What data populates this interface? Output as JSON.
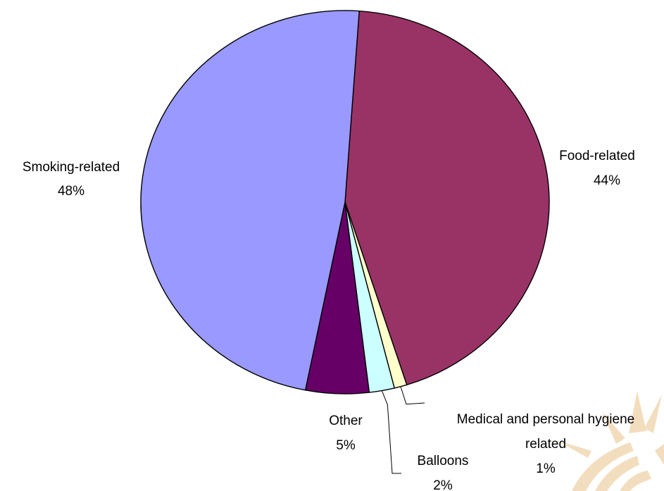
{
  "chart_data": {
    "type": "pie",
    "title": "",
    "slices": [
      {
        "label": "Food-related",
        "value": 44,
        "percent_label": "44%",
        "color": "#993366"
      },
      {
        "label": "Medical and personal hygiene related",
        "label_lines": [
          "Medical and personal hygiene",
          "related"
        ],
        "value": 1,
        "percent_label": "1%",
        "color": "#FFFFCC"
      },
      {
        "label": "Balloons",
        "value": 2,
        "percent_label": "2%",
        "color": "#CCFFFF"
      },
      {
        "label": "Other",
        "value": 5,
        "percent_label": "5%",
        "color": "#660066"
      },
      {
        "label": "Smoking-related",
        "value": 48,
        "percent_label": "48%",
        "color": "#9999FF"
      }
    ],
    "legend": "none",
    "data_labels": "category name and percentage",
    "start": "top, clockwise"
  },
  "decoration": {
    "watermark": "faint sunburst in bottom-right corner",
    "watermark_color": "#E8C48A"
  }
}
